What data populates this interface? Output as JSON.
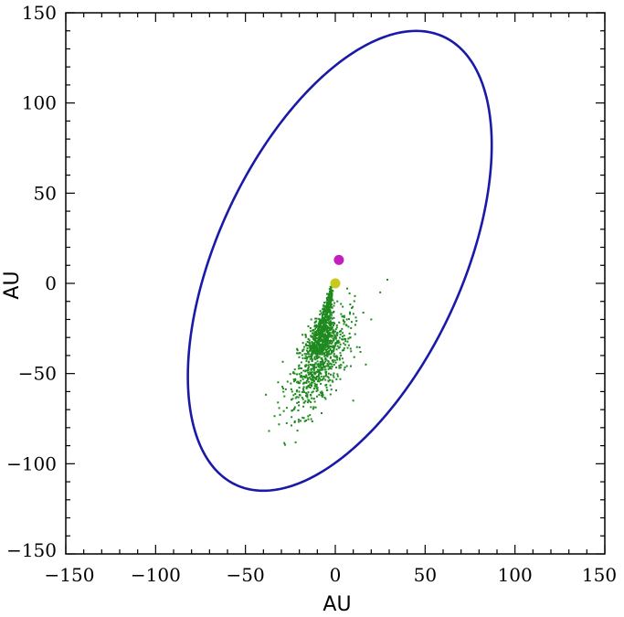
{
  "chart_data": {
    "type": "scatter",
    "title": "",
    "xlabel": "AU",
    "ylabel": "AU",
    "xlim": [
      -150,
      150
    ],
    "ylim": [
      -150,
      150
    ],
    "x_ticks": [
      -150,
      -100,
      -50,
      0,
      50,
      100,
      150
    ],
    "y_ticks": [
      -150,
      -100,
      -50,
      0,
      50,
      100,
      150
    ],
    "x_tick_labels": [
      "−150",
      "−100",
      "−50",
      "0",
      "50",
      "100",
      "150"
    ],
    "y_tick_labels": [
      "−150",
      "−100",
      "−50",
      "0",
      "50",
      "100",
      "150"
    ],
    "minor_tick_step": 10,
    "grid": false,
    "colors": {
      "orbit": "#1a1aa8",
      "particles": "#1f8a1f",
      "central_star": "#c8c81e",
      "companion": "#c21fc2"
    },
    "orbit_ellipse": {
      "center": [
        2.5,
        12.5
      ],
      "semi_major": 137,
      "semi_minor": 68,
      "orientation_deg": 65
    },
    "markers": [
      {
        "x": 0,
        "y": 0,
        "color": "#c8c81e"
      },
      {
        "x": 2,
        "y": 13,
        "color": "#c21fc2"
      }
    ],
    "particle_cloud": {
      "apex": [
        -2,
        -3
      ],
      "core_end": [
        -10,
        -38
      ],
      "core_count": 600,
      "scatter_count": 700,
      "scatter_center": [
        -9,
        -45
      ],
      "scatter_spread": [
        10,
        13
      ],
      "outliers": [
        [
          29,
          2
        ],
        [
          25,
          -5
        ],
        [
          20,
          -20
        ],
        [
          17,
          -45
        ],
        [
          -27,
          -69
        ],
        [
          -24,
          -60
        ],
        [
          10,
          -65
        ],
        [
          14,
          -38
        ]
      ]
    }
  }
}
